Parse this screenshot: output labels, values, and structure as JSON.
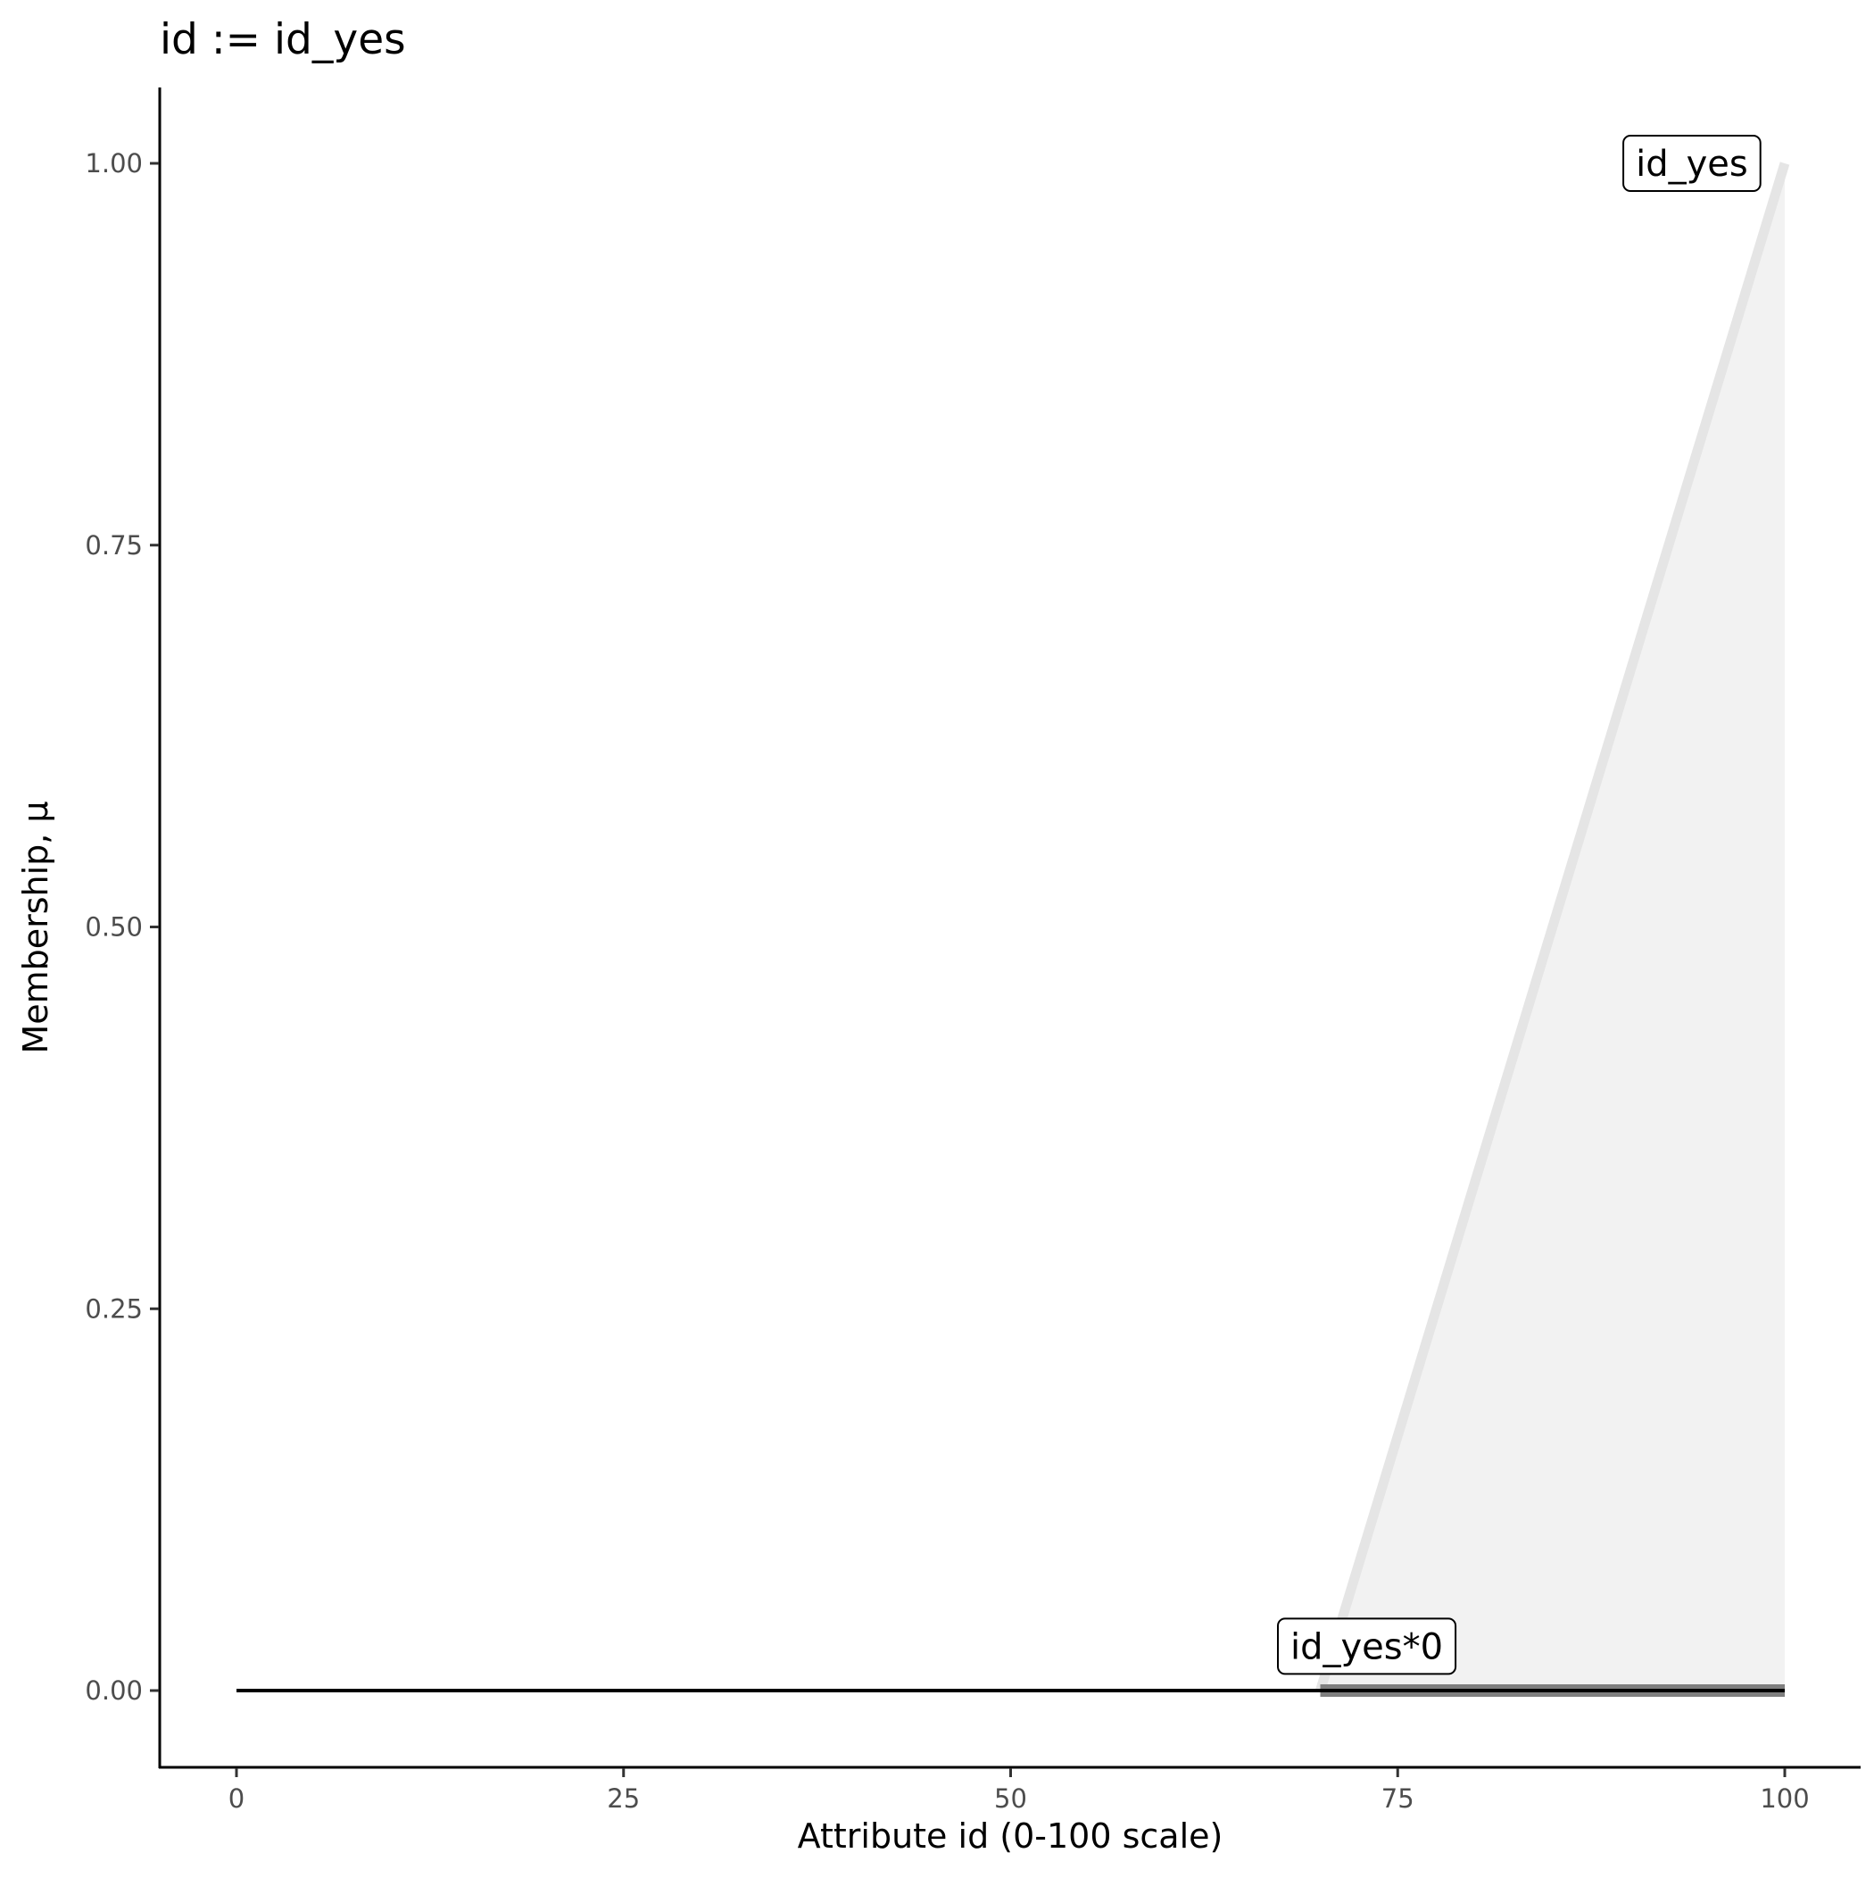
{
  "chart_data": {
    "type": "line",
    "title": "id := id_yes",
    "xlabel": "Attribute id (0-100 scale)",
    "ylabel": "Membership, μ",
    "xlim": [
      -5,
      105
    ],
    "ylim": [
      -0.05,
      1.05
    ],
    "x_ticks": [
      0,
      25,
      50,
      75,
      100
    ],
    "x_tick_labels": [
      "0",
      "25",
      "50",
      "75",
      "100"
    ],
    "y_ticks": [
      0,
      0.25,
      0.5,
      0.75,
      1.0
    ],
    "y_tick_labels": [
      "0.00",
      "0.25",
      "0.50",
      "0.75",
      "1.00"
    ],
    "grid": false,
    "series": [
      {
        "name": "id_yes",
        "x": [
          70,
          100
        ],
        "y": [
          0,
          1
        ],
        "color": "#e5e5e5",
        "fill": "#f2f2f2"
      },
      {
        "name": "id_yes*0",
        "x": [
          70,
          100
        ],
        "y": [
          0,
          0
        ],
        "color": "#7f7f7f"
      },
      {
        "x": [
          0,
          100
        ],
        "y": [
          0,
          0
        ],
        "color": "#000000"
      }
    ],
    "annotations": [
      {
        "text": "id_yes",
        "x": 94,
        "y": 1.0
      },
      {
        "text": "id_yes*0",
        "x": 73,
        "y": 0.029
      }
    ]
  }
}
